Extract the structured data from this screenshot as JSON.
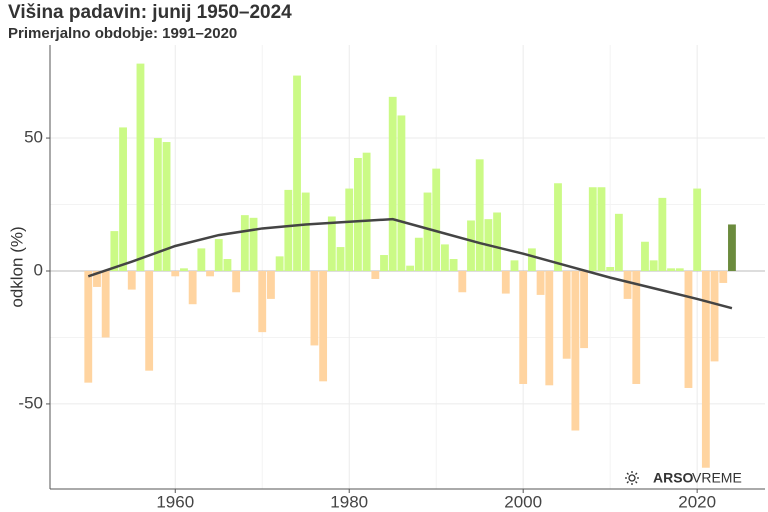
{
  "chart_data": {
    "type": "bar",
    "title": "Višina padavin: junij 1950–2024",
    "subtitle": "Primerjalno obdobje: 1991–2020",
    "y_label": "odklon (%)",
    "x": [
      1950,
      1951,
      1952,
      1953,
      1954,
      1955,
      1956,
      1957,
      1958,
      1959,
      1960,
      1961,
      1962,
      1963,
      1964,
      1965,
      1966,
      1967,
      1968,
      1969,
      1970,
      1971,
      1972,
      1973,
      1974,
      1975,
      1976,
      1977,
      1978,
      1979,
      1980,
      1981,
      1982,
      1983,
      1984,
      1985,
      1986,
      1987,
      1988,
      1989,
      1990,
      1991,
      1992,
      1993,
      1994,
      1995,
      1996,
      1997,
      1998,
      1999,
      2000,
      2001,
      2002,
      2003,
      2004,
      2005,
      2006,
      2007,
      2008,
      2009,
      2010,
      2011,
      2012,
      2013,
      2014,
      2015,
      2016,
      2017,
      2018,
      2019,
      2020,
      2021,
      2022,
      2023,
      2024
    ],
    "values": [
      -42,
      -6,
      -25,
      15,
      54,
      -7,
      78,
      -37.5,
      50,
      48.5,
      -2,
      1,
      -12.5,
      8.5,
      -2,
      12,
      4.5,
      -8,
      21,
      20,
      -23,
      -10.5,
      5.5,
      30.5,
      73.5,
      29.5,
      -28,
      -41.5,
      20.5,
      9,
      31,
      42.5,
      44.5,
      -3,
      6,
      65.5,
      58.5,
      2,
      12.5,
      29.5,
      38.5,
      10,
      4.5,
      -8,
      19,
      42,
      19.5,
      22,
      -8.5,
      4,
      -42.5,
      8.5,
      -9,
      -43,
      33,
      -33,
      -60,
      -29,
      31.5,
      31.5,
      1.5,
      21.5,
      -10.5,
      -42.5,
      11,
      4,
      27.5,
      1,
      1,
      -44,
      31,
      -74,
      -34,
      -4.5,
      17.5
    ],
    "positive_color": "#cbfa86",
    "negative_color": "#ffd4a0",
    "highlight_x": 2024,
    "highlight_color": "#6b8b3d",
    "trend": {
      "color": "#444444",
      "x": [
        1950,
        1955,
        1960,
        1965,
        1970,
        1975,
        1980,
        1985,
        1990,
        1995,
        2000,
        2005,
        2010,
        2015,
        2020,
        2024
      ],
      "values": [
        -2,
        3.5,
        9.4,
        13.5,
        16,
        17.5,
        18.5,
        19.5,
        15,
        10.5,
        6.5,
        2,
        -2.5,
        -6.5,
        -10.5,
        -14
      ]
    },
    "xlim": [
      1945.6,
      2027.8
    ],
    "ylim": [
      -82,
      85
    ],
    "xticks": [
      1960,
      1980,
      2000,
      2020
    ],
    "yticks": [
      -50,
      0,
      50
    ],
    "grid": true
  },
  "logo": {
    "brand": "ARSO",
    "product": "VREME"
  }
}
